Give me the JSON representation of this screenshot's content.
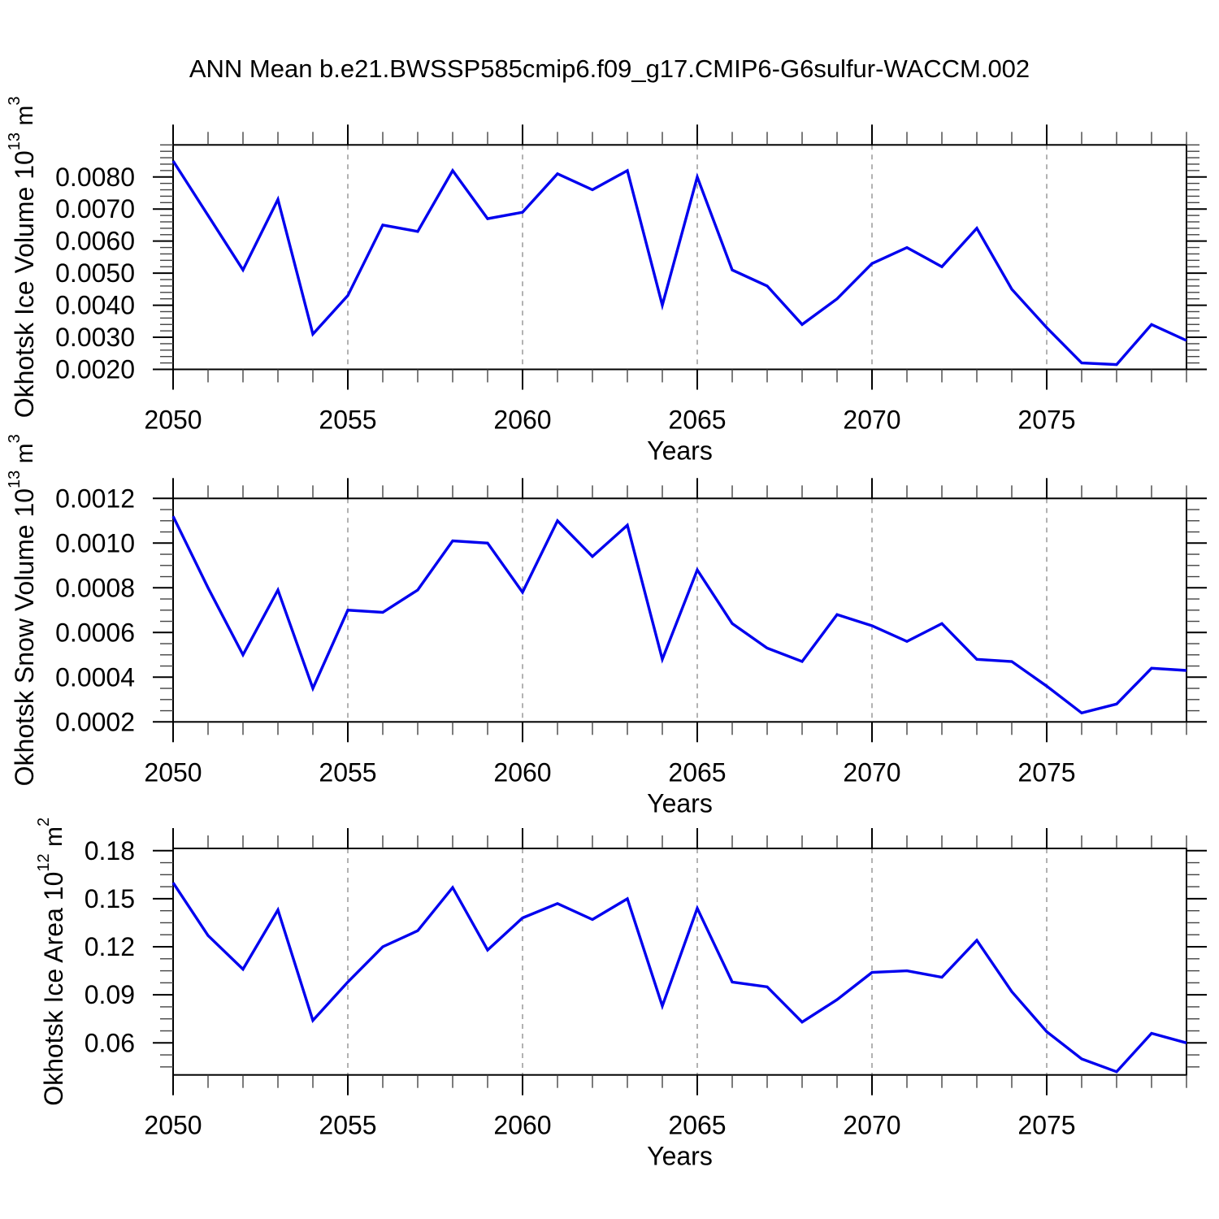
{
  "page": {
    "title": "ANN Mean b.e21.BWSSP585cmip6.f09_g17.CMIP6-G6sulfur-WACCM.002",
    "background_color": "#ffffff",
    "line_color": "#0000ee",
    "grid_color": "#999999",
    "frame_color": "#000000"
  },
  "chart_data": [
    {
      "type": "line",
      "ylabel": "Okhotsk Ice Volume 10¹³ m³",
      "ylabel_parts": [
        {
          "t": "Okhotsk Ice Volume 10"
        },
        {
          "t": "13",
          "sup": true
        },
        {
          "t": " m"
        },
        {
          "t": "3",
          "sup": true
        }
      ],
      "xlabel": "Years",
      "x_range": [
        2050,
        2079
      ],
      "y_range": [
        0.002,
        0.009
      ],
      "y_ticks": [
        {
          "v": 0.002,
          "label": "0.0020"
        },
        {
          "v": 0.003,
          "label": "0.0030"
        },
        {
          "v": 0.004,
          "label": "0.0040"
        },
        {
          "v": 0.005,
          "label": "0.0050"
        },
        {
          "v": 0.006,
          "label": "0.0060"
        },
        {
          "v": 0.007,
          "label": "0.0070"
        },
        {
          "v": 0.008,
          "label": "0.0080"
        }
      ],
      "y_minor_step": 0.0002,
      "x_major_ticks": [
        {
          "v": 2050,
          "label": "2050"
        },
        {
          "v": 2055,
          "label": "2055"
        },
        {
          "v": 2060,
          "label": "2060"
        },
        {
          "v": 2065,
          "label": "2065"
        },
        {
          "v": 2070,
          "label": "2070"
        },
        {
          "v": 2075,
          "label": "2075"
        }
      ],
      "x_minor_step": 1,
      "grid_x": [
        2055,
        2060,
        2065,
        2070,
        2075
      ],
      "grid_on": true,
      "legend": "none",
      "years": [
        2050,
        2051,
        2052,
        2053,
        2054,
        2055,
        2056,
        2057,
        2058,
        2059,
        2060,
        2061,
        2062,
        2063,
        2064,
        2065,
        2066,
        2067,
        2068,
        2069,
        2070,
        2071,
        2072,
        2073,
        2074,
        2075,
        2076,
        2077,
        2078,
        2079
      ],
      "values": [
        0.0085,
        0.0068,
        0.0051,
        0.0073,
        0.0031,
        0.0043,
        0.0065,
        0.0063,
        0.0082,
        0.0067,
        0.0069,
        0.0081,
        0.0076,
        0.0082,
        0.004,
        0.008,
        0.0051,
        0.0046,
        0.0034,
        0.0042,
        0.0053,
        0.0058,
        0.0052,
        0.0064,
        0.0045,
        0.0033,
        0.0022,
        0.00215,
        0.0034,
        0.0029
      ]
    },
    {
      "type": "line",
      "ylabel": "Okhotsk Snow Volume 10¹³ m³",
      "ylabel_parts": [
        {
          "t": "Okhotsk Snow Volume 10"
        },
        {
          "t": "13",
          "sup": true
        },
        {
          "t": " m"
        },
        {
          "t": "3",
          "sup": true
        }
      ],
      "xlabel": "Years",
      "x_range": [
        2050,
        2079
      ],
      "y_range": [
        0.0002,
        0.0012
      ],
      "y_ticks": [
        {
          "v": 0.0002,
          "label": "0.0002"
        },
        {
          "v": 0.0004,
          "label": "0.0004"
        },
        {
          "v": 0.0006,
          "label": "0.0006"
        },
        {
          "v": 0.0008,
          "label": "0.0008"
        },
        {
          "v": 0.001,
          "label": "0.0010"
        },
        {
          "v": 0.0012,
          "label": "0.0012"
        }
      ],
      "y_minor_step": 5e-05,
      "x_major_ticks": [
        {
          "v": 2050,
          "label": "2050"
        },
        {
          "v": 2055,
          "label": "2055"
        },
        {
          "v": 2060,
          "label": "2060"
        },
        {
          "v": 2065,
          "label": "2065"
        },
        {
          "v": 2070,
          "label": "2070"
        },
        {
          "v": 2075,
          "label": "2075"
        }
      ],
      "x_minor_step": 1,
      "grid_x": [
        2055,
        2060,
        2065,
        2070,
        2075
      ],
      "grid_on": true,
      "legend": "none",
      "years": [
        2050,
        2051,
        2052,
        2053,
        2054,
        2055,
        2056,
        2057,
        2058,
        2059,
        2060,
        2061,
        2062,
        2063,
        2064,
        2065,
        2066,
        2067,
        2068,
        2069,
        2070,
        2071,
        2072,
        2073,
        2074,
        2075,
        2076,
        2077,
        2078,
        2079
      ],
      "values": [
        0.00112,
        0.0008,
        0.0005,
        0.00079,
        0.00035,
        0.0007,
        0.00069,
        0.00079,
        0.00101,
        0.001,
        0.00078,
        0.0011,
        0.00094,
        0.00108,
        0.00048,
        0.00088,
        0.00064,
        0.00053,
        0.00047,
        0.00068,
        0.00063,
        0.00056,
        0.00064,
        0.00048,
        0.00047,
        0.00036,
        0.00024,
        0.00028,
        0.00044,
        0.00043
      ]
    },
    {
      "type": "line",
      "ylabel": "Okhotsk Ice Area 10¹² m²",
      "ylabel_parts": [
        {
          "t": "Okhotsk Ice Area 10"
        },
        {
          "t": "12",
          "sup": true
        },
        {
          "t": " m"
        },
        {
          "t": "2",
          "sup": true
        }
      ],
      "xlabel": "Years",
      "x_range": [
        2050,
        2079
      ],
      "y_range": [
        0.04,
        0.1814
      ],
      "y_ticks": [
        {
          "v": 0.06,
          "label": "0.06"
        },
        {
          "v": 0.09,
          "label": "0.09"
        },
        {
          "v": 0.12,
          "label": "0.12"
        },
        {
          "v": 0.15,
          "label": "0.15"
        },
        {
          "v": 0.18,
          "label": "0.18"
        }
      ],
      "y_minor_step": 0.0075,
      "x_major_ticks": [
        {
          "v": 2050,
          "label": "2050"
        },
        {
          "v": 2055,
          "label": "2055"
        },
        {
          "v": 2060,
          "label": "2060"
        },
        {
          "v": 2065,
          "label": "2065"
        },
        {
          "v": 2070,
          "label": "2070"
        },
        {
          "v": 2075,
          "label": "2075"
        }
      ],
      "x_minor_step": 1,
      "grid_x": [
        2055,
        2060,
        2065,
        2070,
        2075
      ],
      "grid_on": true,
      "legend": "none",
      "years": [
        2050,
        2051,
        2052,
        2053,
        2054,
        2055,
        2056,
        2057,
        2058,
        2059,
        2060,
        2061,
        2062,
        2063,
        2064,
        2065,
        2066,
        2067,
        2068,
        2069,
        2070,
        2071,
        2072,
        2073,
        2074,
        2075,
        2076,
        2077,
        2078,
        2079
      ],
      "values": [
        0.16,
        0.127,
        0.106,
        0.143,
        0.074,
        0.098,
        0.12,
        0.13,
        0.157,
        0.118,
        0.138,
        0.147,
        0.137,
        0.15,
        0.083,
        0.144,
        0.098,
        0.095,
        0.073,
        0.087,
        0.104,
        0.105,
        0.101,
        0.124,
        0.092,
        0.067,
        0.05,
        0.042,
        0.066,
        0.06
      ]
    }
  ]
}
